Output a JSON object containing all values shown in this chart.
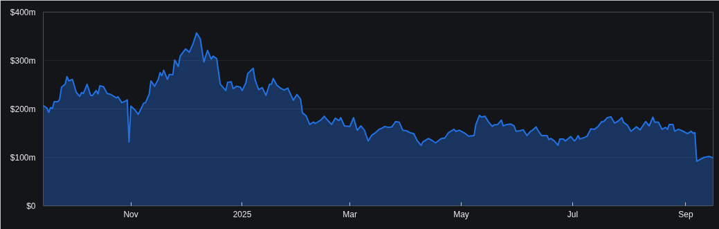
{
  "chart_data": {
    "type": "area",
    "xlim": [
      "2024-09-14",
      "2025-09-16"
    ],
    "xticks": [
      {
        "value": "2024-11-01",
        "label": "Nov"
      },
      {
        "value": "2025-01-01",
        "label": "2025"
      },
      {
        "value": "2025-03-01",
        "label": "Mar"
      },
      {
        "value": "2025-05-01",
        "label": "May"
      },
      {
        "value": "2025-07-01",
        "label": "Jul"
      },
      {
        "value": "2025-09-01",
        "label": "Sep"
      }
    ],
    "ylim": [
      0,
      400
    ],
    "yticks": [
      {
        "value": 0,
        "label": "$0"
      },
      {
        "value": 100,
        "label": "$100m"
      },
      {
        "value": 200,
        "label": "$200m"
      },
      {
        "value": 300,
        "label": "$300m"
      },
      {
        "value": 400,
        "label": "$400m"
      }
    ],
    "grid": "y",
    "x": [
      "2024-09-14",
      "2024-09-16",
      "2024-09-17",
      "2024-09-18",
      "2024-09-19",
      "2024-09-20",
      "2024-09-22",
      "2024-09-23",
      "2024-09-24",
      "2024-09-26",
      "2024-09-27",
      "2024-09-28",
      "2024-09-30",
      "2024-10-02",
      "2024-10-04",
      "2024-10-05",
      "2024-10-06",
      "2024-10-08",
      "2024-10-10",
      "2024-10-11",
      "2024-10-13",
      "2024-10-14",
      "2024-10-15",
      "2024-10-17",
      "2024-10-19",
      "2024-10-21",
      "2024-10-24",
      "2024-10-25",
      "2024-10-27",
      "2024-10-29",
      "2024-10-30",
      "2024-10-31",
      "2024-11-01",
      "2024-11-03",
      "2024-11-05",
      "2024-11-06",
      "2024-11-08",
      "2024-11-09",
      "2024-11-11",
      "2024-11-12",
      "2024-11-14",
      "2024-11-16",
      "2024-11-17",
      "2024-11-18",
      "2024-11-19",
      "2024-11-21",
      "2024-11-22",
      "2024-11-24",
      "2024-11-25",
      "2024-11-27",
      "2024-11-28",
      "2024-12-01",
      "2024-12-03",
      "2024-12-05",
      "2024-12-07",
      "2024-12-09",
      "2024-12-11",
      "2024-12-13",
      "2024-12-15",
      "2024-12-16",
      "2024-12-18",
      "2024-12-20",
      "2024-12-21",
      "2024-12-23",
      "2024-12-24",
      "2024-12-26",
      "2024-12-27",
      "2024-12-29",
      "2024-12-31",
      "2025-01-01",
      "2025-01-03",
      "2025-01-04",
      "2025-01-07",
      "2025-01-08",
      "2025-01-10",
      "2025-01-12",
      "2025-01-14",
      "2025-01-16",
      "2025-01-17",
      "2025-01-18",
      "2025-01-20",
      "2025-01-22",
      "2025-01-24",
      "2025-01-26",
      "2025-01-29",
      "2025-01-31",
      "2025-02-02",
      "2025-02-03",
      "2025-02-05",
      "2025-02-07",
      "2025-02-09",
      "2025-02-10",
      "2025-02-13",
      "2025-02-15",
      "2025-02-16",
      "2025-02-19",
      "2025-02-21",
      "2025-02-23",
      "2025-02-24",
      "2025-02-26",
      "2025-03-01",
      "2025-03-02",
      "2025-03-03",
      "2025-03-05",
      "2025-03-07",
      "2025-03-09",
      "2025-03-11",
      "2025-03-13",
      "2025-03-15",
      "2025-03-17",
      "2025-03-19",
      "2025-03-20",
      "2025-03-22",
      "2025-03-24",
      "2025-03-26",
      "2025-03-28",
      "2025-03-30",
      "2025-04-01",
      "2025-04-03",
      "2025-04-05",
      "2025-04-07",
      "2025-04-09",
      "2025-04-10",
      "2025-04-13",
      "2025-04-15",
      "2025-04-17",
      "2025-04-20",
      "2025-04-22",
      "2025-04-24",
      "2025-04-27",
      "2025-04-28",
      "2025-04-30",
      "2025-05-03",
      "2025-05-05",
      "2025-05-08",
      "2025-05-09",
      "2025-05-11",
      "2025-05-12",
      "2025-05-14",
      "2025-05-16",
      "2025-05-18",
      "2025-05-19",
      "2025-05-21",
      "2025-05-23",
      "2025-05-24",
      "2025-05-26",
      "2025-05-28",
      "2025-05-30",
      "2025-05-31",
      "2025-06-02",
      "2025-06-04",
      "2025-06-06",
      "2025-06-08",
      "2025-06-09",
      "2025-06-11",
      "2025-06-12",
      "2025-06-14",
      "2025-06-17",
      "2025-06-18",
      "2025-06-19",
      "2025-06-21",
      "2025-06-23",
      "2025-06-24",
      "2025-06-26",
      "2025-06-27",
      "2025-06-30",
      "2025-07-02",
      "2025-07-03",
      "2025-07-04",
      "2025-07-05",
      "2025-07-08",
      "2025-07-09",
      "2025-07-11",
      "2025-07-13",
      "2025-07-15",
      "2025-07-17",
      "2025-07-18",
      "2025-07-20",
      "2025-07-22",
      "2025-07-24",
      "2025-07-26",
      "2025-07-28",
      "2025-07-29",
      "2025-07-31",
      "2025-08-02",
      "2025-08-05",
      "2025-08-07",
      "2025-08-10",
      "2025-08-12",
      "2025-08-14",
      "2025-08-15",
      "2025-08-17",
      "2025-08-19",
      "2025-08-21",
      "2025-08-22",
      "2025-08-23",
      "2025-08-25",
      "2025-08-26",
      "2025-08-28",
      "2025-08-30",
      "2025-09-02",
      "2025-09-04",
      "2025-09-05",
      "2025-09-06",
      "2025-09-07",
      "2025-09-11",
      "2025-09-14",
      "2025-09-16"
    ],
    "series": [
      {
        "color": "#2172e5",
        "values": [
          207,
          202,
          193,
          203,
          201,
          215,
          215,
          220,
          245,
          251,
          267,
          258,
          261,
          235,
          226,
          234,
          232,
          251,
          228,
          228,
          238,
          231,
          248,
          246,
          232,
          230,
          223,
          225,
          213,
          216,
          219,
          132,
          206,
          199,
          189,
          196,
          212,
          213,
          230,
          258,
          247,
          261,
          275,
          269,
          280,
          261,
          271,
          271,
          301,
          288,
          309,
          324,
          317,
          334,
          357,
          345,
          297,
          321,
          303,
          309,
          304,
          251,
          247,
          238,
          255,
          256,
          242,
          247,
          245,
          238,
          254,
          273,
          284,
          261,
          240,
          244,
          228,
          251,
          251,
          263,
          249,
          243,
          239,
          243,
          218,
          230,
          220,
          192,
          186,
          168,
          173,
          170,
          177,
          185,
          180,
          168,
          181,
          176,
          182,
          165,
          164,
          173,
          182,
          156,
          165,
          156,
          134,
          146,
          151,
          158,
          161,
          164,
          162,
          163,
          174,
          173,
          156,
          155,
          151,
          149,
          134,
          125,
          132,
          139,
          135,
          130,
          139,
          140,
          151,
          158,
          154,
          156,
          150,
          144,
          145,
          168,
          187,
          183,
          185,
          173,
          164,
          167,
          168,
          177,
          165,
          168,
          169,
          165,
          154,
          155,
          157,
          145,
          154,
          156,
          163,
          156,
          145,
          145,
          137,
          139,
          134,
          125,
          138,
          138,
          134,
          143,
          134,
          138,
          145,
          138,
          142,
          144,
          159,
          158,
          164,
          174,
          174,
          182,
          184,
          171,
          175,
          182,
          172,
          167,
          154,
          163,
          157,
          174,
          165,
          183,
          173,
          173,
          158,
          162,
          158,
          168,
          168,
          154,
          158,
          155,
          149,
          154,
          150,
          151,
          92,
          100,
          102,
          99
        ]
      }
    ]
  }
}
